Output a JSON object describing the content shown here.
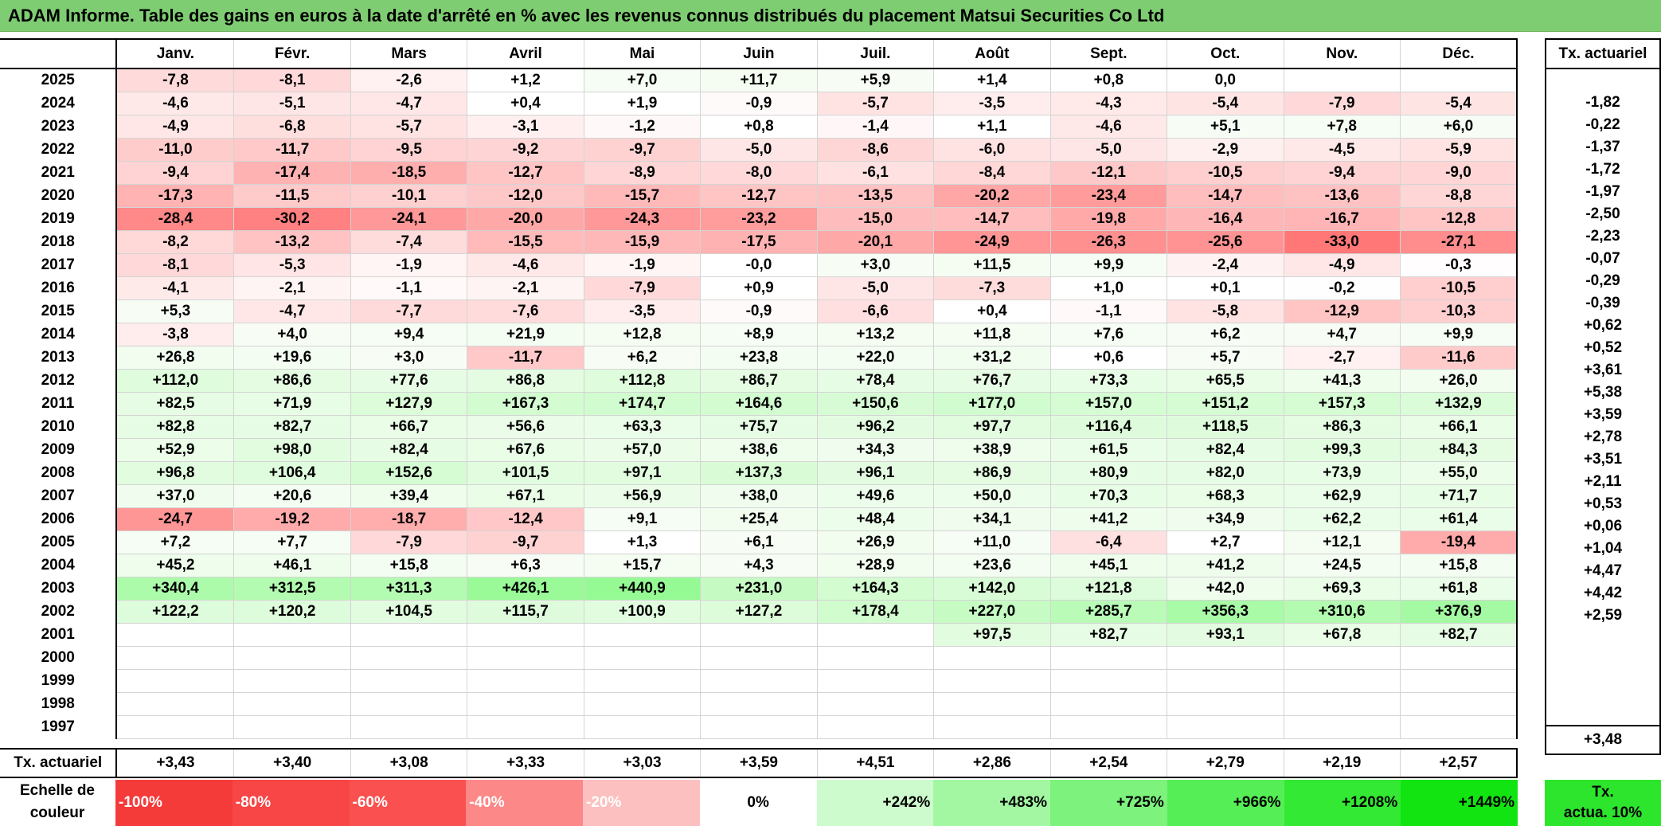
{
  "title": "ADAM Informe. Table des gains en euros à la date d'arrêté en % avec les revenus connus distribués du placement Matsui Securities Co Ltd",
  "months": [
    "Janv.",
    "Févr.",
    "Mars",
    "Avril",
    "Mai",
    "Juin",
    "Juil.",
    "Août",
    "Sept.",
    "Oct.",
    "Nov.",
    "Déc."
  ],
  "rate_header": "Tx. actuariel",
  "rows": [
    {
      "year": "2025",
      "values": [
        "-7,8",
        "-8,1",
        "-2,6",
        "+1,2",
        "+7,0",
        "+11,7",
        "+5,9",
        "+1,4",
        "+0,8",
        "0,0",
        "",
        ""
      ],
      "rate": ""
    },
    {
      "year": "2024",
      "values": [
        "-4,6",
        "-5,1",
        "-4,7",
        "+0,4",
        "+1,9",
        "-0,9",
        "-5,7",
        "-3,5",
        "-4,3",
        "-5,4",
        "-7,9",
        "-5,4"
      ],
      "rate": "-1,82"
    },
    {
      "year": "2023",
      "values": [
        "-4,9",
        "-6,8",
        "-5,7",
        "-3,1",
        "-1,2",
        "+0,8",
        "-1,4",
        "+1,1",
        "-4,6",
        "+5,1",
        "+7,8",
        "+6,0"
      ],
      "rate": "-0,22"
    },
    {
      "year": "2022",
      "values": [
        "-11,0",
        "-11,7",
        "-9,5",
        "-9,2",
        "-9,7",
        "-5,0",
        "-8,6",
        "-6,0",
        "-5,0",
        "-2,9",
        "-4,5",
        "-5,9"
      ],
      "rate": "-1,37"
    },
    {
      "year": "2021",
      "values": [
        "-9,4",
        "-17,4",
        "-18,5",
        "-12,7",
        "-8,9",
        "-8,0",
        "-6,1",
        "-8,4",
        "-12,1",
        "-10,5",
        "-9,4",
        "-9,0"
      ],
      "rate": "-1,72"
    },
    {
      "year": "2020",
      "values": [
        "-17,3",
        "-11,5",
        "-10,1",
        "-12,0",
        "-15,7",
        "-12,7",
        "-13,5",
        "-20,2",
        "-23,4",
        "-14,7",
        "-13,6",
        "-8,8"
      ],
      "rate": "-1,97"
    },
    {
      "year": "2019",
      "values": [
        "-28,4",
        "-30,2",
        "-24,1",
        "-20,0",
        "-24,3",
        "-23,2",
        "-15,0",
        "-14,7",
        "-19,8",
        "-16,4",
        "-16,7",
        "-12,8"
      ],
      "rate": "-2,50"
    },
    {
      "year": "2018",
      "values": [
        "-8,2",
        "-13,2",
        "-7,4",
        "-15,5",
        "-15,9",
        "-17,5",
        "-20,1",
        "-24,9",
        "-26,3",
        "-25,6",
        "-33,0",
        "-27,1"
      ],
      "rate": "-2,23"
    },
    {
      "year": "2017",
      "values": [
        "-8,1",
        "-5,3",
        "-1,9",
        "-4,6",
        "-1,9",
        "-0,0",
        "+3,0",
        "+11,5",
        "+9,9",
        "-2,4",
        "-4,9",
        "-0,3"
      ],
      "rate": "-0,07"
    },
    {
      "year": "2016",
      "values": [
        "-4,1",
        "-2,1",
        "-1,1",
        "-2,1",
        "-7,9",
        "+0,9",
        "-5,0",
        "-7,3",
        "+1,0",
        "+0,1",
        "-0,2",
        "-10,5"
      ],
      "rate": "-0,29"
    },
    {
      "year": "2015",
      "values": [
        "+5,3",
        "-4,7",
        "-7,7",
        "-7,6",
        "-3,5",
        "-0,9",
        "-6,6",
        "+0,4",
        "-1,1",
        "-5,8",
        "-12,9",
        "-10,3"
      ],
      "rate": "-0,39"
    },
    {
      "year": "2014",
      "values": [
        "-3,8",
        "+4,0",
        "+9,4",
        "+21,9",
        "+12,8",
        "+8,9",
        "+13,2",
        "+11,8",
        "+7,6",
        "+6,2",
        "+4,7",
        "+9,9"
      ],
      "rate": "+0,62"
    },
    {
      "year": "2013",
      "values": [
        "+26,8",
        "+19,6",
        "+3,0",
        "-11,7",
        "+6,2",
        "+23,8",
        "+22,0",
        "+31,2",
        "+0,6",
        "+5,7",
        "-2,7",
        "-11,6"
      ],
      "rate": "+0,52"
    },
    {
      "year": "2012",
      "values": [
        "+112,0",
        "+86,6",
        "+77,6",
        "+86,8",
        "+112,8",
        "+86,7",
        "+78,4",
        "+76,7",
        "+73,3",
        "+65,5",
        "+41,3",
        "+26,0"
      ],
      "rate": "+3,61"
    },
    {
      "year": "2011",
      "values": [
        "+82,5",
        "+71,9",
        "+127,9",
        "+167,3",
        "+174,7",
        "+164,6",
        "+150,6",
        "+177,0",
        "+157,0",
        "+151,2",
        "+157,3",
        "+132,9"
      ],
      "rate": "+5,38"
    },
    {
      "year": "2010",
      "values": [
        "+82,8",
        "+82,7",
        "+66,7",
        "+56,6",
        "+63,3",
        "+75,7",
        "+96,2",
        "+97,7",
        "+116,4",
        "+118,5",
        "+86,3",
        "+66,1"
      ],
      "rate": "+3,59"
    },
    {
      "year": "2009",
      "values": [
        "+52,9",
        "+98,0",
        "+82,4",
        "+67,6",
        "+57,0",
        "+38,6",
        "+34,3",
        "+38,9",
        "+61,5",
        "+82,4",
        "+99,3",
        "+84,3"
      ],
      "rate": "+2,78"
    },
    {
      "year": "2008",
      "values": [
        "+96,8",
        "+106,4",
        "+152,6",
        "+101,5",
        "+97,1",
        "+137,3",
        "+96,1",
        "+86,9",
        "+80,9",
        "+82,0",
        "+73,9",
        "+55,0"
      ],
      "rate": "+3,51"
    },
    {
      "year": "2007",
      "values": [
        "+37,0",
        "+20,6",
        "+39,4",
        "+67,1",
        "+56,9",
        "+38,0",
        "+49,6",
        "+50,0",
        "+70,3",
        "+68,3",
        "+62,9",
        "+71,7"
      ],
      "rate": "+2,11"
    },
    {
      "year": "2006",
      "values": [
        "-24,7",
        "-19,2",
        "-18,7",
        "-12,4",
        "+9,1",
        "+25,4",
        "+48,4",
        "+34,1",
        "+41,2",
        "+34,9",
        "+62,2",
        "+61,4"
      ],
      "rate": "+0,53"
    },
    {
      "year": "2005",
      "values": [
        "+7,2",
        "+7,7",
        "-7,9",
        "-9,7",
        "+1,3",
        "+6,1",
        "+26,9",
        "+11,0",
        "-6,4",
        "+2,7",
        "+12,1",
        "-19,4"
      ],
      "rate": "+0,06"
    },
    {
      "year": "2004",
      "values": [
        "+45,2",
        "+46,1",
        "+15,8",
        "+6,3",
        "+15,7",
        "+4,3",
        "+28,9",
        "+23,6",
        "+45,1",
        "+41,2",
        "+24,5",
        "+15,8"
      ],
      "rate": "+1,04"
    },
    {
      "year": "2003",
      "values": [
        "+340,4",
        "+312,5",
        "+311,3",
        "+426,1",
        "+440,9",
        "+231,0",
        "+164,3",
        "+142,0",
        "+121,8",
        "+42,0",
        "+69,3",
        "+61,8"
      ],
      "rate": "+4,47"
    },
    {
      "year": "2002",
      "values": [
        "+122,2",
        "+120,2",
        "+104,5",
        "+115,7",
        "+100,9",
        "+127,2",
        "+178,4",
        "+227,0",
        "+285,7",
        "+356,3",
        "+310,6",
        "+376,9"
      ],
      "rate": "+4,42"
    },
    {
      "year": "2001",
      "values": [
        "",
        "",
        "",
        "",
        "",
        "",
        "",
        "+97,5",
        "+82,7",
        "+93,1",
        "+67,8",
        "+82,7"
      ],
      "rate": "+2,59"
    },
    {
      "year": "2000",
      "values": [
        "",
        "",
        "",
        "",
        "",
        "",
        "",
        "",
        "",
        "",
        "",
        ""
      ],
      "rate": ""
    },
    {
      "year": "1999",
      "values": [
        "",
        "",
        "",
        "",
        "",
        "",
        "",
        "",
        "",
        "",
        "",
        ""
      ],
      "rate": ""
    },
    {
      "year": "1998",
      "values": [
        "",
        "",
        "",
        "",
        "",
        "",
        "",
        "",
        "",
        "",
        "",
        ""
      ],
      "rate": ""
    },
    {
      "year": "1997",
      "values": [
        "",
        "",
        "",
        "",
        "",
        "",
        "",
        "",
        "",
        "",
        "",
        ""
      ],
      "rate": ""
    }
  ],
  "footer": {
    "label": "Tx. actuariel",
    "values": [
      "+3,43",
      "+3,40",
      "+3,08",
      "+3,33",
      "+3,03",
      "+3,59",
      "+4,51",
      "+2,86",
      "+2,54",
      "+2,79",
      "+2,19",
      "+2,57"
    ],
    "rate": "+3,48"
  },
  "legend": {
    "label_line1": "Echelle de",
    "label_line2": "couleur",
    "items": [
      {
        "label": "-100%",
        "color": "#f53a3a",
        "kind": "neg"
      },
      {
        "label": "-80%",
        "color": "#f84545",
        "kind": "neg"
      },
      {
        "label": "-60%",
        "color": "#fa5050",
        "kind": "neg"
      },
      {
        "label": "-40%",
        "color": "#fc8888",
        "kind": "neg"
      },
      {
        "label": "-20%",
        "color": "#fdc0c0",
        "kind": "neg"
      },
      {
        "label": "0%",
        "color": "#ffffff",
        "kind": "zero"
      },
      {
        "label": "+242%",
        "color": "#cdfbcd",
        "kind": "pos"
      },
      {
        "label": "+483%",
        "color": "#a3f7a3",
        "kind": "pos"
      },
      {
        "label": "+725%",
        "color": "#7df27d",
        "kind": "pos"
      },
      {
        "label": "+966%",
        "color": "#56ee56",
        "kind": "pos"
      },
      {
        "label": "+1208%",
        "color": "#33e933",
        "kind": "pos"
      },
      {
        "label": "+1449%",
        "color": "#11e411",
        "kind": "pos"
      }
    ],
    "rate_line1": "Tx.",
    "rate_line2": "actua. 10%"
  }
}
